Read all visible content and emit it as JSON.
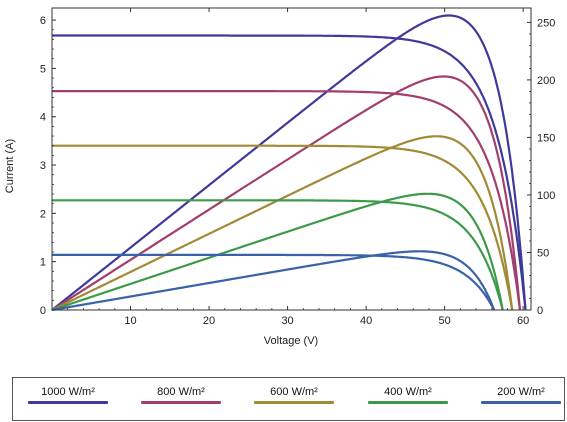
{
  "chart_data": {
    "type": "line",
    "xlabel": "Voltage (V)",
    "ylabel": "Current (A)",
    "xlim": [
      0,
      61
    ],
    "ylim_left": [
      0,
      6.25
    ],
    "ylim_right": [
      0,
      262.5
    ],
    "x_ticks": [
      "10",
      "20",
      "30",
      "40",
      "50",
      "60"
    ],
    "y_ticks_left": [
      "0",
      "1",
      "2",
      "3",
      "4",
      "5",
      "6"
    ],
    "y_ticks_right": [
      "0",
      "50",
      "100",
      "150",
      "200",
      "250"
    ],
    "legend_position": "bottom",
    "series": [
      {
        "name": "1000 W/m²",
        "color": "#3e3a9b",
        "isc": 5.68,
        "voc": 60.3,
        "pmax": 256,
        "vmp": 49.5
      },
      {
        "name": "800 W/m²",
        "color": "#a33d6e",
        "isc": 4.53,
        "voc": 59.6,
        "pmax": 203,
        "vmp": 49
      },
      {
        "name": "600 W/m²",
        "color": "#a08a35",
        "isc": 3.4,
        "voc": 58.6,
        "pmax": 151,
        "vmp": 48.5
      },
      {
        "name": "400 W/m²",
        "color": "#3c9a4a",
        "isc": 2.27,
        "voc": 57.4,
        "pmax": 101,
        "vmp": 48
      },
      {
        "name": "200 W/m²",
        "color": "#3a62a8",
        "isc": 1.14,
        "voc": 56.3,
        "pmax": 51,
        "vmp": 47.5
      }
    ]
  }
}
